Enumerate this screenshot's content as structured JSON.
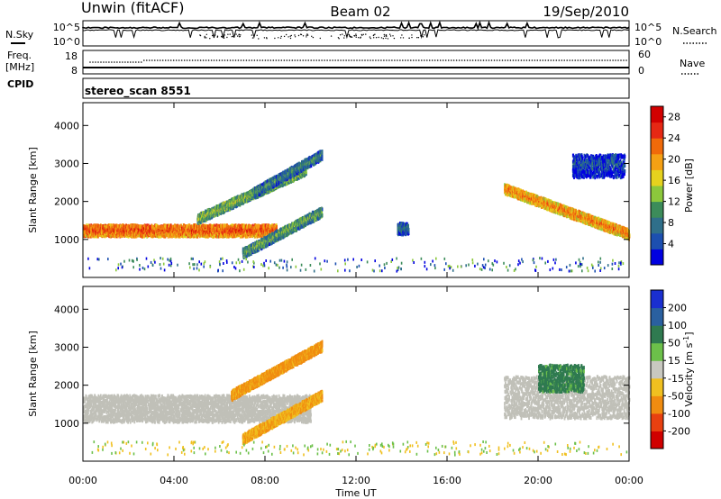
{
  "header": {
    "station": "Unwin (fitACF)",
    "beam": "Beam 02",
    "date": "19/Sep/2010"
  },
  "noise_panel": {
    "left_label": "N.Sky",
    "right_label": "N.Search",
    "left_ticks": [
      "10^5",
      "10^0"
    ],
    "right_ticks": [
      "10^5",
      "10^0"
    ]
  },
  "freq_panel": {
    "left_label_1": "Freq.",
    "left_label_2": "[MHz]",
    "right_label": "Nave",
    "cpid_label": "CPID",
    "left_ticks": [
      "18",
      "8"
    ],
    "right_ticks": [
      "60",
      "0"
    ]
  },
  "cpid_panel": {
    "text": "stereo_scan 8551"
  },
  "chart_data": [
    {
      "type": "heatmap",
      "title": "",
      "xlabel": "Time UT",
      "ylabel": "Slant Range [km]",
      "x_ticks": [
        "00:00",
        "04:00",
        "08:00",
        "12:00",
        "16:00",
        "20:00",
        "00:00"
      ],
      "y_ticks": [
        1000,
        2000,
        3000,
        4000
      ],
      "ylim": [
        0,
        4600
      ],
      "colorbar_label": "Power [dB]",
      "colorbar_ticks": [
        4,
        8,
        12,
        16,
        20,
        24,
        28
      ],
      "colorbar_range": [
        0,
        30
      ],
      "colors": [
        "#0000e0",
        "#1c4fb0",
        "#2f6f8a",
        "#3c8c5a",
        "#8cc83c",
        "#e6d21e",
        "#f5a014",
        "#f06a0a",
        "#e62814",
        "#d20000"
      ],
      "features": [
        {
          "name": "main-band-morning",
          "t_start": 0.0,
          "t_end": 8.5,
          "range_start": 1050,
          "range_end": 1350,
          "power": 24
        },
        {
          "name": "rising-arc-1",
          "t_start": 5.0,
          "t_end": 9.8,
          "range_start": 1500,
          "range_end": 2800,
          "power": 14
        },
        {
          "name": "rising-arc-2",
          "t_start": 7.5,
          "t_end": 10.5,
          "range_start": 2200,
          "range_end": 3200,
          "power": 10
        },
        {
          "name": "late-arc-low",
          "t_start": 7.0,
          "t_end": 10.5,
          "range_start": 600,
          "range_end": 1700,
          "power": 12
        },
        {
          "name": "patch-14h",
          "t_start": 13.8,
          "t_end": 14.3,
          "range_start": 1100,
          "range_end": 1400,
          "power": 8
        },
        {
          "name": "evening-band",
          "t_start": 18.5,
          "t_end": 24.0,
          "range_start": 1100,
          "range_end": 2300,
          "power": 22
        },
        {
          "name": "evening-high",
          "t_start": 21.5,
          "t_end": 23.8,
          "range_start": 2600,
          "range_end": 3200,
          "power": 6
        }
      ]
    },
    {
      "type": "heatmap",
      "title": "",
      "xlabel": "Time UT",
      "ylabel": "Slant Range [km]",
      "x_ticks": [
        "00:00",
        "04:00",
        "08:00",
        "12:00",
        "16:00",
        "20:00",
        "00:00"
      ],
      "y_ticks": [
        1000,
        2000,
        3000,
        4000
      ],
      "ylim": [
        0,
        4600
      ],
      "colorbar_label": "Velocity [m s",
      "colorbar_label_sup": "-1",
      "colorbar_label_end": "]",
      "colorbar_ticks": [
        200,
        100,
        50,
        15,
        -15,
        -50,
        -100,
        -200
      ],
      "colors": [
        "#1a2fd0",
        "#2a60a0",
        "#2f7a50",
        "#6cc04a",
        "#c8c8c0",
        "#f0c020",
        "#f08c10",
        "#e84010",
        "#d00000"
      ],
      "ground_scatter_color": "#c0c0b8",
      "features": [
        {
          "name": "ground-scatter-morning",
          "t_start": 0.0,
          "t_end": 10.0,
          "range_start": 1000,
          "range_end": 1700,
          "velocity": 0
        },
        {
          "name": "arc-negative",
          "t_start": 6.5,
          "t_end": 10.5,
          "range_start": 1700,
          "range_end": 3000,
          "velocity": -60
        },
        {
          "name": "arc-low-negative",
          "t_start": 7.0,
          "t_end": 10.5,
          "range_start": 550,
          "range_end": 1700,
          "velocity": -50
        },
        {
          "name": "evening-ground-scatter",
          "t_start": 18.5,
          "t_end": 24.0,
          "range_start": 1100,
          "range_end": 2200,
          "velocity": 0
        },
        {
          "name": "evening-positive",
          "t_start": 20.0,
          "t_end": 22.0,
          "range_start": 1800,
          "range_end": 2500,
          "velocity": 30
        }
      ]
    }
  ]
}
